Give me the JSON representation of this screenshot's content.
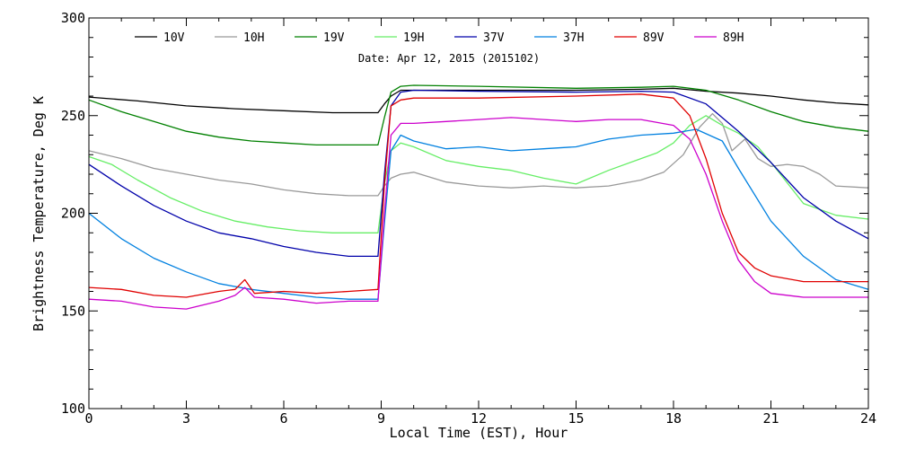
{
  "chart_data": {
    "type": "line",
    "title": "",
    "annotation": "Date: Apr 12, 2015 (2015102)",
    "xlabel": "Local Time (EST), Hour",
    "ylabel": "Brightness Temperature, Deg K",
    "xlim": [
      0,
      24
    ],
    "ylim": [
      100,
      300
    ],
    "xticks": [
      0,
      3,
      6,
      9,
      12,
      15,
      18,
      21,
      24
    ],
    "yticks": [
      100,
      150,
      200,
      250,
      300
    ],
    "grid": false,
    "legend_position": "top",
    "series": [
      {
        "name": "10V",
        "color": "#000000",
        "x": [
          0,
          1.5,
          3,
          4.5,
          6,
          7.5,
          8.9,
          9.1,
          9.3,
          9.6,
          10,
          12,
          15,
          17,
          18,
          19,
          20,
          21,
          22,
          23,
          24
        ],
        "y": [
          259.5,
          257.5,
          255,
          253.5,
          252.5,
          251.5,
          251.5,
          256,
          260,
          263,
          263,
          263,
          263,
          263.5,
          264,
          262.5,
          261.5,
          260,
          258,
          256.5,
          255.5
        ]
      },
      {
        "name": "10H",
        "color": "#999999",
        "x": [
          0,
          1,
          2,
          3,
          4,
          5,
          6,
          7,
          8,
          8.9,
          9.1,
          9.3,
          9.6,
          10,
          11,
          12,
          13,
          14,
          15,
          16,
          17,
          17.7,
          18.3,
          18.8,
          19.2,
          19.5,
          19.8,
          20.2,
          20.6,
          21,
          21.5,
          22,
          22.5,
          23,
          24
        ],
        "y": [
          232,
          228,
          223,
          220,
          217,
          215,
          212,
          210,
          209,
          209,
          214,
          218,
          220,
          221,
          216,
          214,
          213,
          214,
          213,
          214,
          217,
          221,
          230,
          244,
          251,
          246,
          232,
          238,
          228,
          224,
          225,
          224,
          220,
          214,
          213
        ]
      },
      {
        "name": "19V",
        "color": "#008000",
        "x": [
          0,
          1,
          2,
          3,
          4,
          5,
          6,
          7,
          8,
          8.9,
          9.1,
          9.3,
          9.6,
          10,
          12,
          15,
          17,
          18,
          19,
          20,
          21,
          22,
          23,
          24
        ],
        "y": [
          258,
          252,
          247,
          242,
          239,
          237,
          236,
          235,
          235,
          235,
          249,
          262,
          265,
          265.5,
          265,
          264,
          264.5,
          265,
          263,
          258,
          252,
          247,
          244,
          242
        ]
      },
      {
        "name": "19H",
        "color": "#66ee66",
        "x": [
          0,
          0.7,
          1.5,
          2.5,
          3.5,
          4.5,
          5.5,
          6.5,
          7.5,
          8.9,
          9.1,
          9.3,
          9.6,
          10,
          11,
          12,
          13,
          14,
          15,
          16,
          17,
          17.5,
          18,
          18.5,
          19,
          19.5,
          20,
          20.6,
          21.2,
          22,
          23,
          24
        ],
        "y": [
          229,
          225,
          217,
          208,
          201,
          196,
          193,
          191,
          190,
          190,
          215,
          232,
          236,
          234,
          227,
          224,
          222,
          218,
          215,
          222,
          228,
          231,
          236,
          245,
          250,
          245,
          241,
          234,
          222,
          205,
          199,
          197
        ]
      },
      {
        "name": "37V",
        "color": "#0000aa",
        "x": [
          0,
          1,
          2,
          3,
          4,
          5,
          6,
          7,
          8,
          8.9,
          9.1,
          9.3,
          9.6,
          10,
          12,
          15,
          17,
          18,
          19,
          20,
          21,
          22,
          23,
          24
        ],
        "y": [
          225,
          214,
          204,
          196,
          190,
          187,
          183,
          180,
          178,
          178,
          220,
          255,
          262,
          263,
          262.5,
          262,
          262.5,
          262,
          256,
          242,
          226,
          208,
          196,
          187
        ]
      },
      {
        "name": "37H",
        "color": "#0080e0",
        "x": [
          0,
          1,
          2,
          3,
          4,
          5,
          6,
          7,
          8,
          8.9,
          9.1,
          9.3,
          9.6,
          10,
          11,
          12,
          13,
          14,
          15,
          16,
          17,
          18,
          18.7,
          19.5,
          20,
          21,
          22,
          23,
          24
        ],
        "y": [
          200,
          187,
          177,
          170,
          164,
          161,
          159,
          157,
          156,
          156,
          195,
          232,
          240,
          237,
          233,
          234,
          232,
          233,
          234,
          238,
          240,
          241,
          243,
          237,
          223,
          196,
          178,
          166,
          161
        ]
      },
      {
        "name": "89V",
        "color": "#e00000",
        "x": [
          0,
          1,
          2,
          3,
          4,
          4.5,
          4.8,
          5.1,
          6,
          7,
          8,
          8.9,
          9.1,
          9.3,
          9.6,
          10,
          12,
          15,
          17,
          18,
          18.5,
          19,
          19.5,
          20,
          20.5,
          21,
          22,
          23,
          24
        ],
        "y": [
          162,
          161,
          158,
          157,
          160,
          161,
          166,
          159,
          160,
          159,
          160,
          161,
          215,
          255,
          258,
          259,
          259,
          260,
          261,
          259,
          250,
          228,
          200,
          180,
          172,
          168,
          165,
          165,
          165
        ]
      },
      {
        "name": "89H",
        "color": "#cc00cc",
        "x": [
          0,
          1,
          2,
          3,
          4,
          4.5,
          4.8,
          5.1,
          6,
          7,
          8,
          8.9,
          9.1,
          9.3,
          9.6,
          10,
          11,
          12,
          13,
          14,
          15,
          16,
          17,
          18,
          18.5,
          19,
          19.5,
          20,
          20.5,
          21,
          22,
          23,
          24
        ],
        "y": [
          156,
          155,
          152,
          151,
          155,
          158,
          162,
          157,
          156,
          154,
          155,
          155,
          200,
          240,
          246,
          246,
          247,
          248,
          249,
          248,
          247,
          248,
          248,
          245,
          238,
          220,
          196,
          176,
          165,
          159,
          157,
          157,
          157
        ]
      }
    ]
  }
}
